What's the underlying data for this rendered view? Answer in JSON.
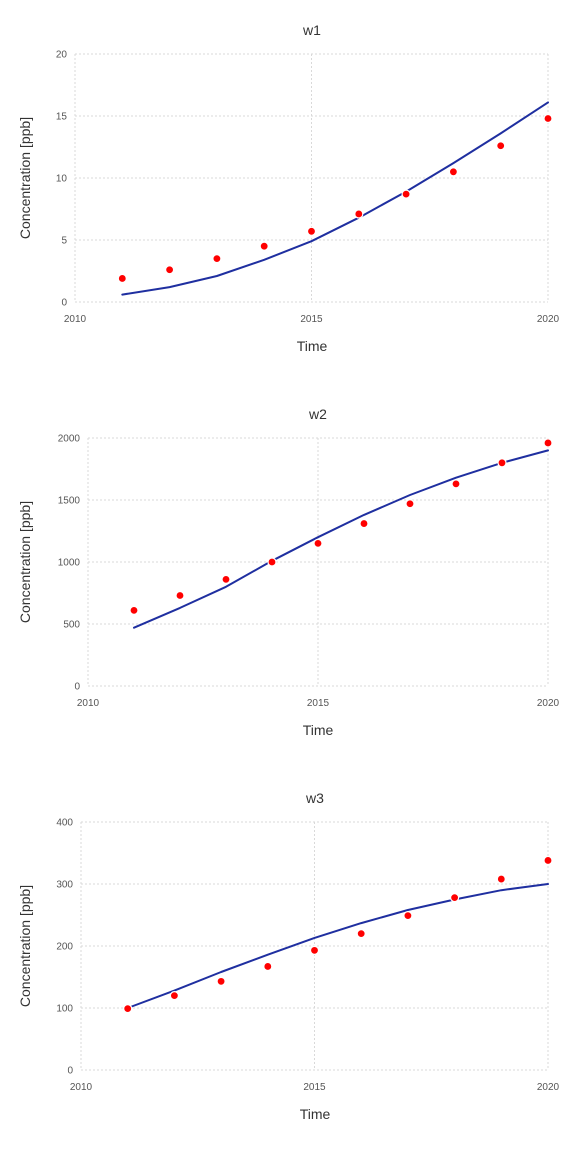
{
  "colors": {
    "model_line": "#1f2fa0",
    "observed_points": "#ff0000"
  },
  "chart_data": [
    {
      "type": "scatter",
      "title": "w1",
      "xlabel": "Time",
      "ylabel": "Concentration [ppb]",
      "xlim": [
        2010,
        2020
      ],
      "ylim": [
        0,
        20
      ],
      "x_ticks": [
        2010,
        2015,
        2020
      ],
      "y_ticks": [
        0,
        5,
        10,
        15,
        20
      ],
      "grid": true,
      "series": [
        {
          "mark": "line",
          "x": [
            2011,
            2012,
            2013,
            2014,
            2015,
            2016,
            2017,
            2018,
            2019,
            2020
          ],
          "values": [
            0.6,
            1.2,
            2.1,
            3.4,
            4.9,
            6.8,
            8.9,
            11.2,
            13.6,
            16.1
          ]
        },
        {
          "mark": "points",
          "x": [
            2011,
            2012,
            2013,
            2014,
            2015,
            2016,
            2017,
            2018,
            2019,
            2020
          ],
          "values": [
            1.9,
            2.6,
            3.5,
            4.5,
            5.7,
            7.1,
            8.7,
            10.5,
            12.6,
            14.8
          ]
        }
      ]
    },
    {
      "type": "scatter",
      "title": "w2",
      "xlabel": "Time",
      "ylabel": "Concentration [ppb]",
      "xlim": [
        2010,
        2020
      ],
      "ylim": [
        0,
        2000
      ],
      "x_ticks": [
        2010,
        2015,
        2020
      ],
      "y_ticks": [
        0,
        500,
        1000,
        1500,
        2000
      ],
      "grid": true,
      "series": [
        {
          "mark": "line",
          "x": [
            2011,
            2012,
            2013,
            2014,
            2015,
            2016,
            2017,
            2018,
            2019,
            2020
          ],
          "values": [
            470,
            630,
            800,
            1010,
            1200,
            1380,
            1540,
            1680,
            1800,
            1900
          ]
        },
        {
          "mark": "points",
          "x": [
            2011,
            2012,
            2013,
            2014,
            2015,
            2016,
            2017,
            2018,
            2019,
            2020
          ],
          "values": [
            610,
            730,
            860,
            1000,
            1150,
            1310,
            1470,
            1630,
            1800,
            1960
          ]
        }
      ]
    },
    {
      "type": "scatter",
      "title": "w3",
      "xlabel": "Time",
      "ylabel": "Concentration [ppb]",
      "xlim": [
        2010,
        2020
      ],
      "ylim": [
        0,
        400
      ],
      "x_ticks": [
        2010,
        2015,
        2020
      ],
      "y_ticks": [
        0,
        100,
        200,
        300,
        400
      ],
      "grid": true,
      "series": [
        {
          "mark": "line",
          "x": [
            2011,
            2012,
            2013,
            2014,
            2015,
            2016,
            2017,
            2018,
            2019,
            2020
          ],
          "values": [
            100,
            128,
            158,
            186,
            213,
            237,
            258,
            275,
            290,
            300
          ]
        },
        {
          "mark": "points",
          "x": [
            2011,
            2012,
            2013,
            2014,
            2015,
            2016,
            2017,
            2018,
            2019,
            2020
          ],
          "values": [
            99,
            120,
            143,
            167,
            193,
            220,
            249,
            278,
            308,
            338
          ]
        }
      ]
    }
  ]
}
